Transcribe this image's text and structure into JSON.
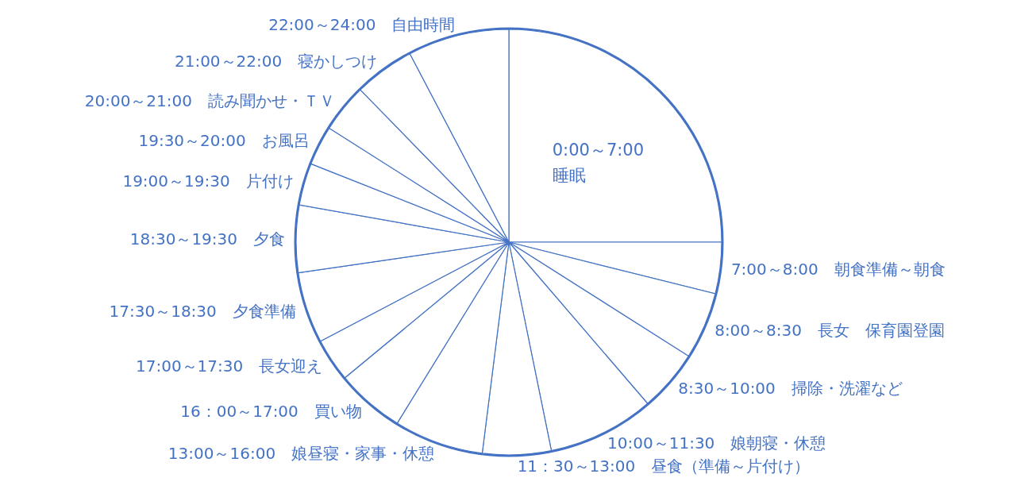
{
  "chart_data": {
    "type": "pie",
    "categories": [
      "0:00～7:00　睡眠",
      "7:00～8:00　朝食準備～朝食",
      "8:00～8:30　長女　保育園登園",
      "8:30～10:00　掃除・洗濯など",
      "10:00～11:30　娘朝寝・休憩",
      "11：30～13:00　昼食（準備～片付け）",
      "13:00～16:00　娘昼寝・家事・休憩",
      "16：00～17:00　買い物",
      "17:00～17:30　長女迎え",
      "17:30～18:30　夕食準備",
      "18:30～19:30　夕食",
      "19:00～19:30　片付け",
      "19:30～20:00　お風呂",
      "20:00～21:00　読み聞かせ・ＴＶ",
      "21:00～22:00　寝かしつけ",
      "22:00～24:00　自由時間"
    ],
    "values": [
      25,
      3.9,
      5.1,
      4.7,
      8.1,
      5.2,
      6.8,
      5.2,
      3.3,
      5.4,
      5.1,
      3.2,
      3.0,
      3.7,
      4.6,
      7.7
    ],
    "colors": [
      "#ffffff",
      "#ffffff",
      "#ffffff",
      "#ffffff",
      "#ffffff",
      "#ffffff",
      "#ffffff",
      "#ffffff",
      "#ffffff",
      "#ffffff",
      "#ffffff",
      "#ffffff",
      "#ffffff",
      "#ffffff",
      "#ffffff",
      "#ffffff"
    ]
  }
}
